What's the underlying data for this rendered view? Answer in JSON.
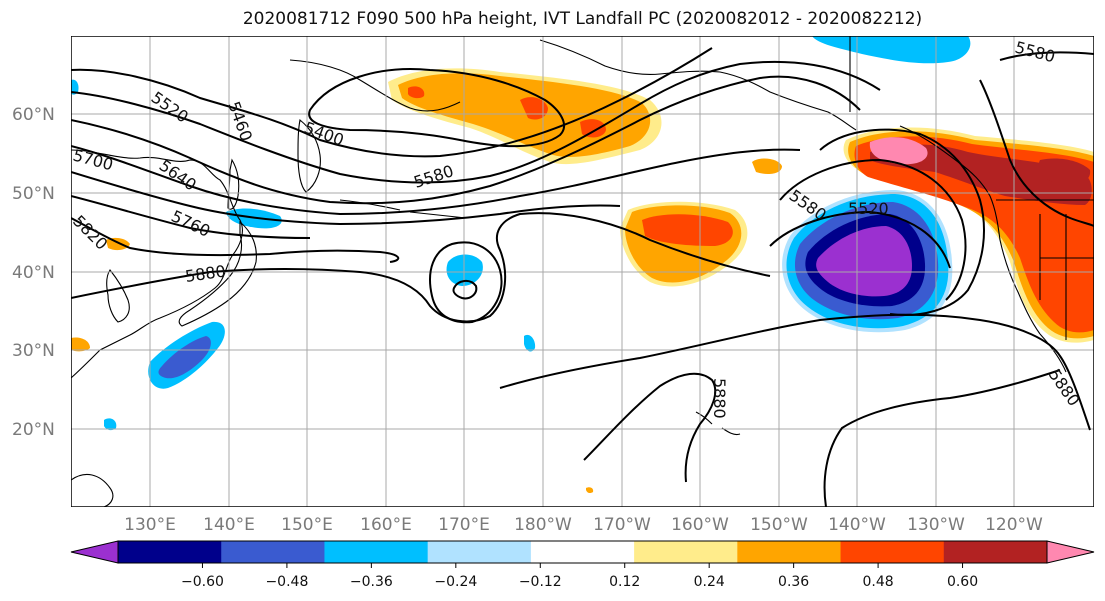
{
  "title": "2020081712 F090 500 hPa height, IVT Landfall PC (2020082012 - 2020082212)",
  "lat_labels": [
    "60°N",
    "50°N",
    "40°N",
    "30°N",
    "20°N"
  ],
  "lon_labels": [
    "130°E",
    "140°E",
    "150°E",
    "160°E",
    "170°E",
    "180°W",
    "170°W",
    "160°W",
    "150°W",
    "140°W",
    "130°W",
    "120°W"
  ],
  "contour_labels": [
    "5520",
    "5460",
    "5400",
    "5700",
    "5640",
    "5580",
    "5760",
    "5820",
    "5880",
    "5580",
    "5520",
    "5580",
    "5880",
    "5880"
  ],
  "colorbar": {
    "tick_labels": [
      "−0.60",
      "−0.48",
      "−0.36",
      "−0.24",
      "−0.12",
      "0.12",
      "0.24",
      "0.36",
      "0.48",
      "0.60"
    ],
    "colors": [
      "#9b30d0",
      "#00008b",
      "#3a5bd0",
      "#00bfff",
      "#b0e2ff",
      "#ffffff",
      "#ffec8b",
      "#ffa500",
      "#ff4500",
      "#b22222",
      "#ff88b0"
    ]
  },
  "colors": {
    "neg_strong": "#9b30d0",
    "neg_2": "#00008b",
    "neg_3": "#3a5bd0",
    "neg_4": "#00bfff",
    "neg_5": "#b0e2ff",
    "pos_1": "#ffec8b",
    "pos_2": "#ffa500",
    "pos_3": "#ff4500",
    "pos_4": "#b22222",
    "pos_5": "#ff88b0"
  }
}
